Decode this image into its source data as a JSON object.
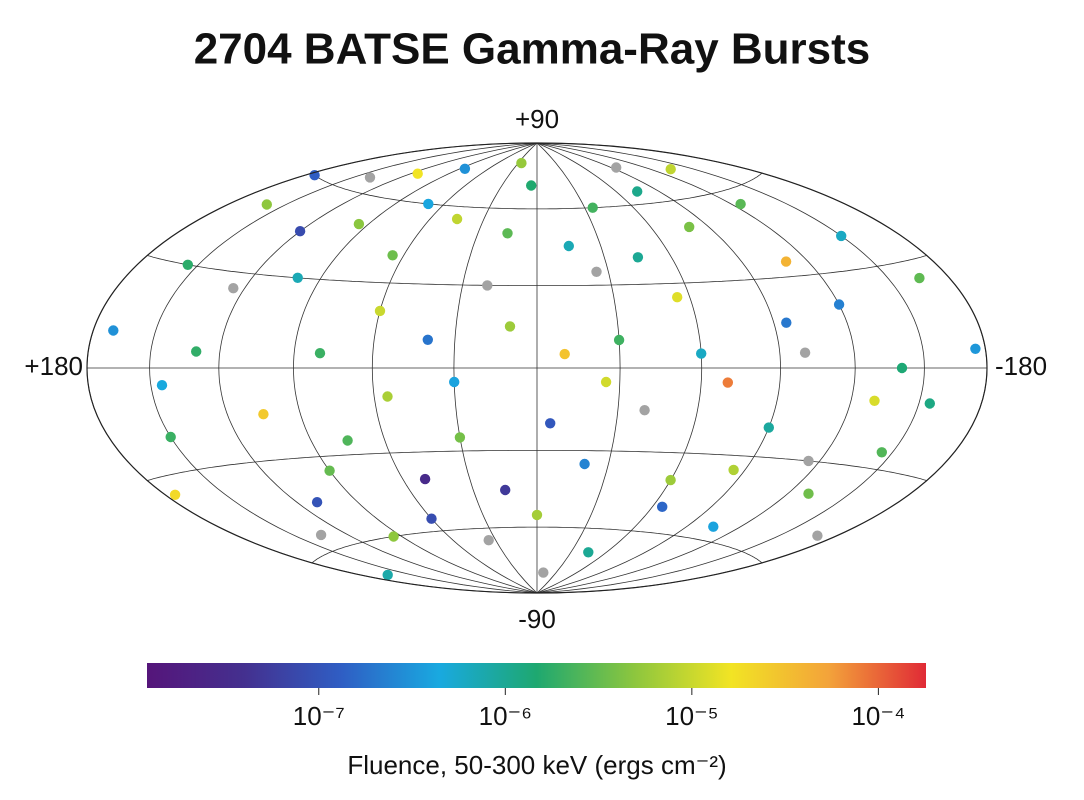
{
  "chart_data": {
    "type": "scatter",
    "projection": "hammer",
    "title": "2704 BATSE Gamma-Ray Bursts",
    "xlim": [
      180,
      -180
    ],
    "ylim": [
      -90,
      90
    ],
    "xticks": [
      {
        "value": 180,
        "label": "+180"
      },
      -180
    ],
    "yticks": [
      {
        "value": 90,
        "label": "+90"
      },
      -90
    ],
    "grid": true,
    "x": [
      170,
      150,
      120,
      95,
      60,
      30,
      5,
      -25,
      -60,
      -95,
      -130,
      -165,
      140,
      100,
      75,
      45,
      15,
      -10,
      -45,
      -80,
      -115,
      -150,
      175,
      130,
      85,
      55,
      20,
      -5,
      -35,
      -70,
      -105,
      -140,
      160,
      110,
      65,
      35,
      10,
      -20,
      -55,
      -90,
      -125,
      -170,
      145,
      115,
      80,
      50,
      25,
      -15,
      -40,
      -75,
      -110,
      -145,
      165,
      125,
      90,
      40,
      0,
      -30,
      -65,
      -100,
      -135,
      -175,
      155,
      105,
      70,
      30,
      -10,
      -45,
      -85,
      -120,
      -155,
      135,
      95,
      60,
      15,
      -25,
      -60,
      -95,
      -130,
      175
    ],
    "y": [
      10,
      -20,
      45,
      -60,
      20,
      -5,
      70,
      35,
      -40,
      15,
      -10,
      25,
      65,
      30,
      -25,
      55,
      -45,
      5,
      -70,
      50,
      -30,
      40,
      -35,
      5,
      75,
      -10,
      30,
      -20,
      60,
      -5,
      -55,
      0,
      50,
      -45,
      40,
      -65,
      15,
      -35,
      25,
      -20,
      55,
      -50,
      -5,
      70,
      5,
      -40,
      80,
      45,
      -15,
      65,
      35,
      -25,
      -70,
      25,
      -35,
      10,
      -55,
      10,
      -50,
      5,
      70,
      5,
      30,
      -15,
      60,
      -25,
      -80,
      40,
      -35,
      20,
      -10,
      -55,
      50,
      -55,
      50,
      -5,
      5,
      75,
      -40,
      60
    ],
    "values": [
      3e-07,
      2e-06,
      8e-08,
      5e-06,
      1e-05,
      4e-07,
      1.5e-06,
      null,
      6e-06,
      2e-07,
      1.2e-05,
      3e-06,
      null,
      7e-07,
      2.5e-06,
      9e-06,
      5e-08,
      3e-05,
      1e-06,
      4e-06,
      null,
      6e-07,
      2e-05,
      1.8e-06,
      3e-07,
      7e-06,
      null,
      1.1e-07,
      2.2e-06,
      8e-05,
      4e-07,
      1.4e-06,
      5e-06,
      1e-07,
      3.5e-06,
      null,
      6e-06,
      2.4e-07,
      1.3e-05,
      9e-07,
      2.8e-06,
      null,
      4.5e-07,
      1.6e-05,
      2e-06,
      3e-08,
      5.5e-06,
      7e-07,
      null,
      1.1e-06,
      4e-05,
      2.6e-06,
      8e-07,
      null,
      3.2e-06,
      1.9e-07,
      6.5e-06,
      2.1e-06,
      1.5e-07,
      null,
      9e-06,
      3.3e-07,
      1.7e-06,
      2.7e-05,
      4.2e-07,
      3.8e-06,
      null,
      1e-06,
      7.5e-06,
      2.3e-07,
      1.2e-06,
      null,
      4.8e-06,
      8.5e-08,
      2.9e-06,
      1.1e-05,
      6e-07,
      null,
      3.6e-06,
      1.3e-07
    ],
    "null_color": "#a3a3a3",
    "colormap": [
      "#55157a",
      "#44308f",
      "#2f5ec4",
      "#19a9e0",
      "#1ea870",
      "#8cc63e",
      "#f2e424",
      "#f3a33a",
      "#e02a36"
    ],
    "clog": true,
    "clim": [
      1.2e-08,
      0.00018
    ],
    "cticks": [
      {
        "value": 1e-07,
        "label": "10⁻⁷"
      },
      {
        "value": 1e-06,
        "label": "10⁻⁶"
      },
      {
        "value": 1e-05,
        "label": "10⁻⁵"
      },
      {
        "value": 0.0001,
        "label": "10⁻⁴"
      }
    ],
    "colorbar_label": "Fluence, 50-300 keV (ergs cm⁻²)"
  }
}
